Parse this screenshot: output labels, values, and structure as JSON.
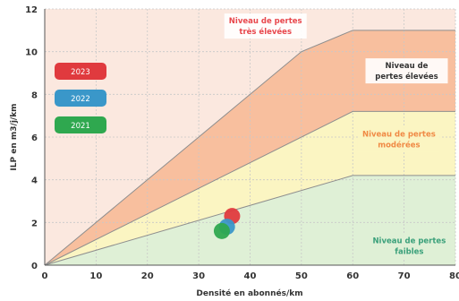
{
  "chart_data": {
    "type": "area",
    "xlabel": "Densité en abonnés/km",
    "ylabel": "ILP en m3/j/km",
    "xlim": [
      0,
      80
    ],
    "ylim": [
      0,
      12
    ],
    "x_ticks": [
      0,
      10,
      20,
      30,
      40,
      50,
      60,
      70,
      80
    ],
    "y_ticks": [
      0,
      2,
      4,
      6,
      8,
      10,
      12
    ],
    "grid": true,
    "boundaries": [
      {
        "points": [
          [
            0,
            0
          ],
          [
            60,
            4.2
          ],
          [
            80,
            4.2
          ]
        ]
      },
      {
        "points": [
          [
            0,
            0
          ],
          [
            60,
            7.2
          ],
          [
            80,
            7.2
          ]
        ]
      },
      {
        "points": [
          [
            0,
            0
          ],
          [
            50,
            10.0
          ],
          [
            60,
            11.0
          ],
          [
            80,
            11.0
          ]
        ]
      }
    ],
    "zones": [
      {
        "label_lines": [
          "Niveau de pertes",
          "faibles"
        ],
        "fill": "#dff0d6",
        "text_color": "#3aa07a"
      },
      {
        "label_lines": [
          "Niveau de pertes",
          "modérées"
        ],
        "fill": "#fbf5c2",
        "text_color": "#f08a45"
      },
      {
        "label_lines": [
          "Niveau de",
          "pertes élevées"
        ],
        "fill": "#f8bf9e",
        "text_color": "#333333"
      },
      {
        "label_lines": [
          "Niveau de pertes",
          "très élevées"
        ],
        "fill": "#fbe8df",
        "text_color": "#e8474c"
      }
    ],
    "series": [
      {
        "name": "2023",
        "color": "#e03a3e",
        "points": [
          {
            "x": 36.5,
            "y": 2.3
          }
        ]
      },
      {
        "name": "2022",
        "color": "#3a97c9",
        "points": [
          {
            "x": 35.5,
            "y": 1.8
          }
        ]
      },
      {
        "name": "2021",
        "color": "#2fa84f",
        "points": [
          {
            "x": 34.5,
            "y": 1.6
          }
        ]
      }
    ],
    "legend": {
      "position": "left"
    }
  }
}
